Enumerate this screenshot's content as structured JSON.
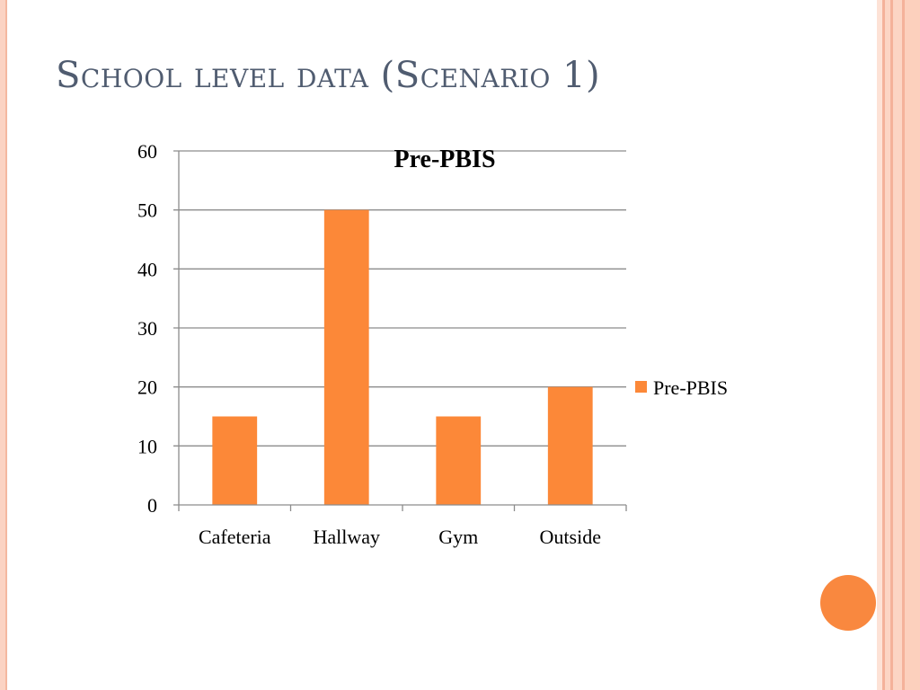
{
  "slide": {
    "title": "School level data (Scenario 1)"
  },
  "colors": {
    "bar": "#fc8838",
    "title_text": "#505c70",
    "accent_circle": "#f9883f",
    "stripe_light": "#fcd5c4",
    "stripe_mid": "#f7b79c",
    "gridline": "#8c8c8c"
  },
  "chart_data": {
    "type": "bar",
    "title": "Pre-PBIS",
    "categories": [
      "Cafeteria",
      "Hallway",
      "Gym",
      "Outside"
    ],
    "series": [
      {
        "name": "Pre-PBIS",
        "values": [
          15,
          50,
          15,
          20
        ]
      }
    ],
    "ylim": [
      0,
      60
    ],
    "yticks": [
      0,
      10,
      20,
      30,
      40,
      50,
      60
    ],
    "grid": true,
    "legend": "right"
  }
}
